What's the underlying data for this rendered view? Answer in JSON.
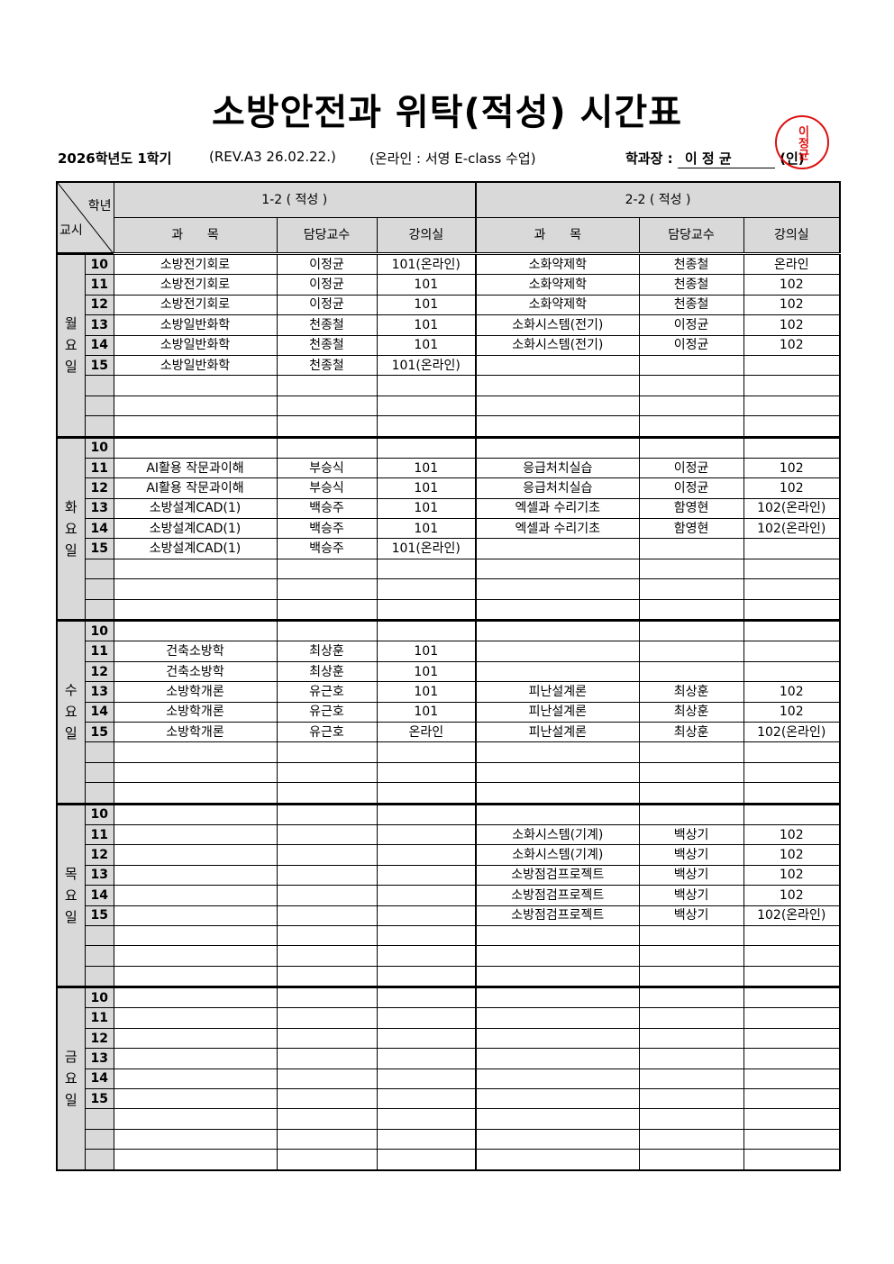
{
  "title": "소방안전과 위탁(적성) 시간표",
  "meta": {
    "term": "2026학년도 1학기",
    "rev": "(REV.A3  26.02.22.)",
    "online": "(온라인 : 서영 E-class 수업)",
    "head_label": "학과장 :",
    "head_name": "이 정 균",
    "seal_mark": "(인)",
    "seal_text": "이정균"
  },
  "header": {
    "corner_top": "학년",
    "corner_bottom": "교시",
    "groups": [
      "1-2 ( 적성 )",
      "2-2 ( 적성 )"
    ],
    "cols": [
      "과      목",
      "담당교수",
      "강의실",
      "과      목",
      "담당교수",
      "강의실"
    ]
  },
  "days": [
    {
      "label": "월요일",
      "rows": [
        [
          "10",
          "소방전기회로",
          "이정균",
          "101(온라인)",
          "소화약제학",
          "천종철",
          "온라인"
        ],
        [
          "11",
          "소방전기회로",
          "이정균",
          "101",
          "소화약제학",
          "천종철",
          "102"
        ],
        [
          "12",
          "소방전기회로",
          "이정균",
          "101",
          "소화약제학",
          "천종철",
          "102"
        ],
        [
          "13",
          "소방일반화학",
          "천종철",
          "101",
          "소화시스템(전기)",
          "이정균",
          "102"
        ],
        [
          "14",
          "소방일반화학",
          "천종철",
          "101",
          "소화시스템(전기)",
          "이정균",
          "102"
        ],
        [
          "15",
          "소방일반화학",
          "천종철",
          "101(온라인)",
          "",
          "",
          ""
        ],
        [
          "",
          "",
          "",
          "",
          "",
          "",
          ""
        ],
        [
          "",
          "",
          "",
          "",
          "",
          "",
          ""
        ],
        [
          "",
          "",
          "",
          "",
          "",
          "",
          ""
        ]
      ]
    },
    {
      "label": "화요일",
      "rows": [
        [
          "10",
          "",
          "",
          "",
          "",
          "",
          ""
        ],
        [
          "11",
          "AI활용 작문과이해",
          "부승식",
          "101",
          "응급처치실습",
          "이정균",
          "102"
        ],
        [
          "12",
          "AI활용 작문과이해",
          "부승식",
          "101",
          "응급처치실습",
          "이정균",
          "102"
        ],
        [
          "13",
          "소방설계CAD(1)",
          "백승주",
          "101",
          "엑셀과 수리기초",
          "함영현",
          "102(온라인)"
        ],
        [
          "14",
          "소방설계CAD(1)",
          "백승주",
          "101",
          "엑셀과 수리기초",
          "함영현",
          "102(온라인)"
        ],
        [
          "15",
          "소방설계CAD(1)",
          "백승주",
          "101(온라인)",
          "",
          "",
          ""
        ],
        [
          "",
          "",
          "",
          "",
          "",
          "",
          ""
        ],
        [
          "",
          "",
          "",
          "",
          "",
          "",
          ""
        ],
        [
          "",
          "",
          "",
          "",
          "",
          "",
          ""
        ]
      ]
    },
    {
      "label": "수요일",
      "rows": [
        [
          "10",
          "",
          "",
          "",
          "",
          "",
          ""
        ],
        [
          "11",
          "건축소방학",
          "최상훈",
          "101",
          "",
          "",
          ""
        ],
        [
          "12",
          "건축소방학",
          "최상훈",
          "101",
          "",
          "",
          ""
        ],
        [
          "13",
          "소방학개론",
          "유근호",
          "101",
          "피난설계론",
          "최상훈",
          "102"
        ],
        [
          "14",
          "소방학개론",
          "유근호",
          "101",
          "피난설계론",
          "최상훈",
          "102"
        ],
        [
          "15",
          "소방학개론",
          "유근호",
          "온라인",
          "피난설계론",
          "최상훈",
          "102(온라인)"
        ],
        [
          "",
          "",
          "",
          "",
          "",
          "",
          ""
        ],
        [
          "",
          "",
          "",
          "",
          "",
          "",
          ""
        ],
        [
          "",
          "",
          "",
          "",
          "",
          "",
          ""
        ]
      ]
    },
    {
      "label": "목요일",
      "rows": [
        [
          "10",
          "",
          "",
          "",
          "",
          "",
          ""
        ],
        [
          "11",
          "",
          "",
          "",
          "소화시스템(기계)",
          "백상기",
          "102"
        ],
        [
          "12",
          "",
          "",
          "",
          "소화시스템(기계)",
          "백상기",
          "102"
        ],
        [
          "13",
          "",
          "",
          "",
          "소방점검프로젝트",
          "백상기",
          "102"
        ],
        [
          "14",
          "",
          "",
          "",
          "소방점검프로젝트",
          "백상기",
          "102"
        ],
        [
          "15",
          "",
          "",
          "",
          "소방점검프로젝트",
          "백상기",
          "102(온라인)"
        ],
        [
          "",
          "",
          "",
          "",
          "",
          "",
          ""
        ],
        [
          "",
          "",
          "",
          "",
          "",
          "",
          ""
        ],
        [
          "",
          "",
          "",
          "",
          "",
          "",
          ""
        ]
      ]
    },
    {
      "label": "금요일",
      "rows": [
        [
          "10",
          "",
          "",
          "",
          "",
          "",
          ""
        ],
        [
          "11",
          "",
          "",
          "",
          "",
          "",
          ""
        ],
        [
          "12",
          "",
          "",
          "",
          "",
          "",
          ""
        ],
        [
          "13",
          "",
          "",
          "",
          "",
          "",
          ""
        ],
        [
          "14",
          "",
          "",
          "",
          "",
          "",
          ""
        ],
        [
          "15",
          "",
          "",
          "",
          "",
          "",
          ""
        ],
        [
          "",
          "",
          "",
          "",
          "",
          "",
          ""
        ],
        [
          "",
          "",
          "",
          "",
          "",
          "",
          ""
        ],
        [
          "",
          "",
          "",
          "",
          "",
          "",
          ""
        ]
      ]
    }
  ]
}
